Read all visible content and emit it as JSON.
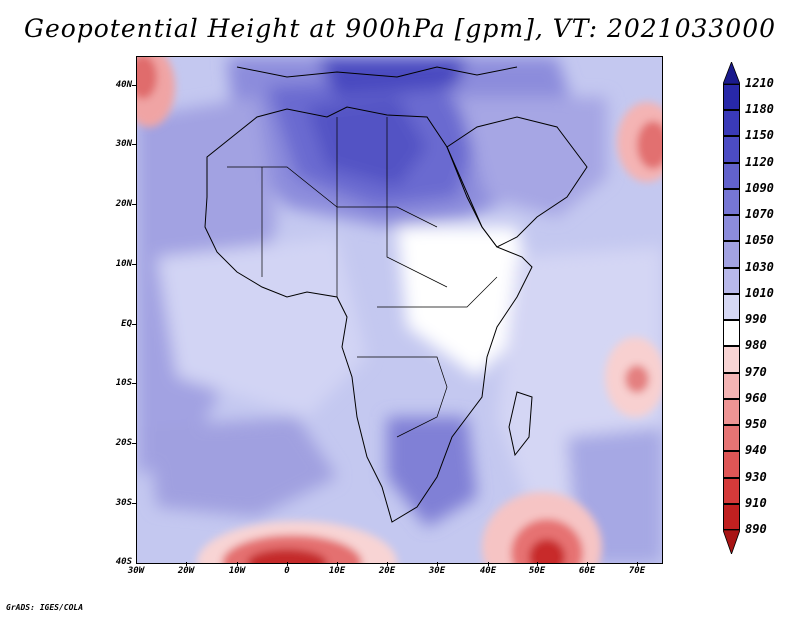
{
  "title": "Geopotential Height at 900hPa [gpm], VT: 2021033000",
  "footer": "GrADS: IGES/COLA",
  "axes": {
    "lat_labels": [
      "40N",
      "30N",
      "20N",
      "10N",
      "EQ",
      "10S",
      "20S",
      "30S",
      "40S"
    ],
    "lon_labels": [
      "30W",
      "20W",
      "10W",
      "0",
      "10E",
      "20E",
      "30E",
      "40E",
      "50E",
      "60E",
      "70E"
    ]
  },
  "legend": {
    "values": [
      "1210",
      "1180",
      "1150",
      "1120",
      "1090",
      "1070",
      "1050",
      "1030",
      "1010",
      "990",
      "980",
      "970",
      "960",
      "950",
      "940",
      "930",
      "910",
      "890"
    ],
    "colors": [
      "#1a1a8c",
      "#2828a8",
      "#3a3ab8",
      "#4c4cc4",
      "#6262cc",
      "#7676d4",
      "#8c8cdc",
      "#a2a2e2",
      "#b8b8ea",
      "#d6d8f4",
      "#ffffff",
      "#f8d4d4",
      "#f4b4b4",
      "#ee9494",
      "#e67474",
      "#de5656",
      "#d43a3a",
      "#c02020",
      "#a81414"
    ]
  },
  "map": {
    "region": "Africa and surrounding oceans",
    "variable": "Geopotential Height",
    "level": "900hPa",
    "units": "gpm",
    "valid_time": "2021033000"
  }
}
